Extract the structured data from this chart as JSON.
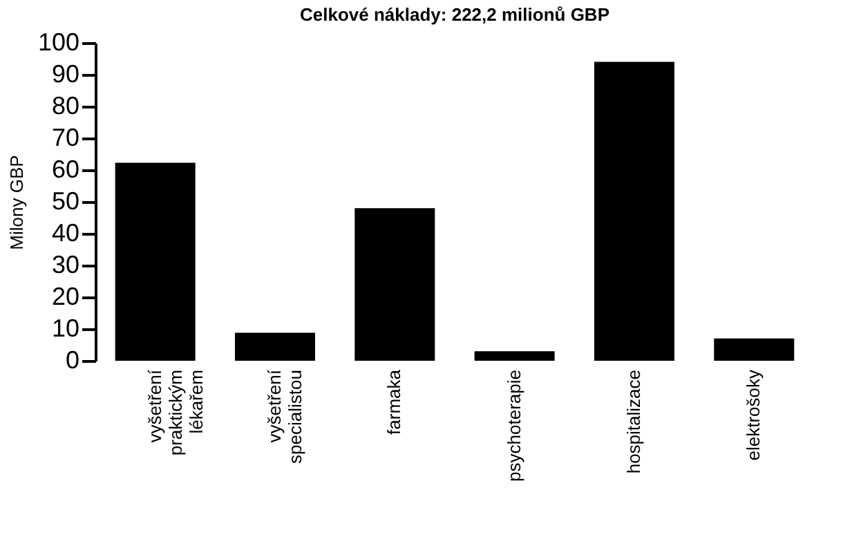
{
  "chart_data": {
    "type": "bar",
    "title": "Celkové náklady: 222,2 milionů GBP",
    "ylabel": "Milony GBP",
    "categories": [
      "vyšetření praktickým lékařem",
      "vyšetření specialistou",
      "farmaka",
      "psychoterapie",
      "hospitalizace",
      "elektrošoky"
    ],
    "values": [
      62.3,
      8.8,
      48,
      3,
      94,
      7
    ],
    "color": "#000000",
    "ylim": [
      0,
      100
    ],
    "yticks": [
      0,
      10,
      20,
      30,
      40,
      50,
      60,
      70,
      80,
      90,
      100
    ],
    "grid": false
  }
}
